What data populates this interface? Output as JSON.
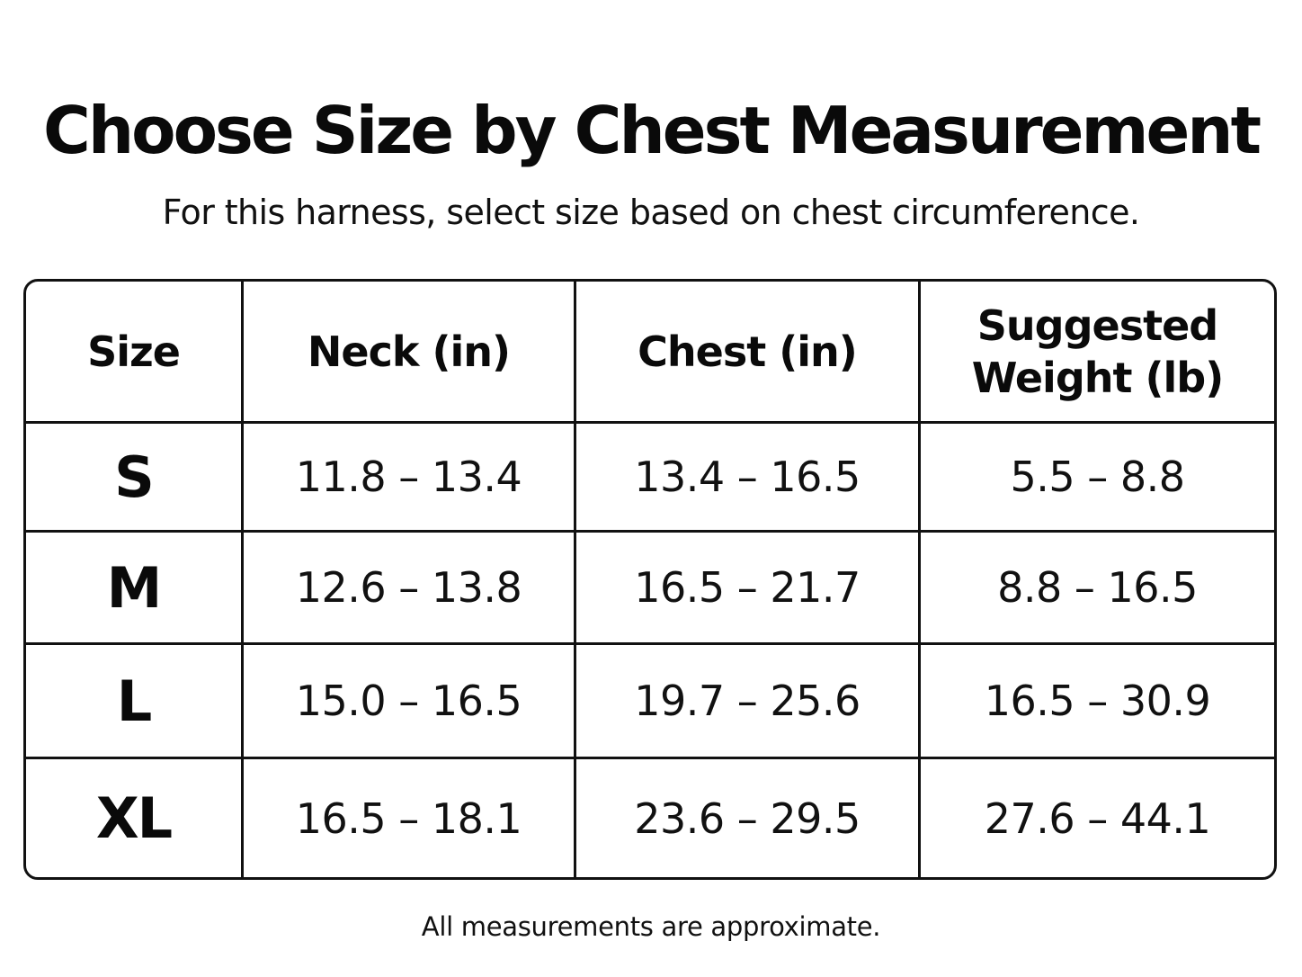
{
  "header": {
    "title": "Choose Size by Chest Measurement",
    "subtitle": "For this harness, select size based on chest circumference."
  },
  "table": {
    "columns": [
      "Size",
      "Neck (in)",
      "Chest (in)",
      "Suggested Weight (lb)"
    ],
    "rows": [
      {
        "size": "S",
        "neck": "11.8 – 13.4",
        "chest": "13.4 – 16.5",
        "weight": "5.5 – 8.8"
      },
      {
        "size": "M",
        "neck": "12.6 – 13.8",
        "chest": "16.5 – 21.7",
        "weight": "8.8 – 16.5"
      },
      {
        "size": "L",
        "neck": "15.0 – 16.5",
        "chest": "19.7 – 25.6",
        "weight": "16.5 – 30.9"
      },
      {
        "size": "XL",
        "neck": "16.5 – 18.1",
        "chest": "23.6 – 29.5",
        "weight": "27.6 – 44.1"
      }
    ]
  },
  "footer": {
    "note": "All measurements are approximate."
  }
}
